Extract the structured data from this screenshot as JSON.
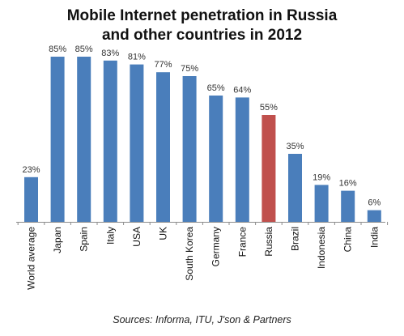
{
  "header": {
    "title_line1": "Mobile Internet penetration in Russia",
    "title_line2": "and other countries in 2012"
  },
  "footer": {
    "source": "Sources: Informa, ITU, J'son & Partners"
  },
  "chart_data": {
    "type": "bar",
    "title": "Mobile Internet penetration in Russia and other countries in 2012",
    "categories": [
      "World average",
      "Japan",
      "Spain",
      "Italy",
      "USA",
      "UK",
      "South Korea",
      "Germany",
      "France",
      "Russia",
      "Brazil",
      "Indonesia",
      "China",
      "India"
    ],
    "values": [
      23,
      85,
      85,
      83,
      81,
      77,
      75,
      65,
      64,
      55,
      35,
      19,
      16,
      6
    ],
    "data_labels": [
      "23%",
      "85%",
      "85%",
      "83%",
      "81%",
      "77%",
      "75%",
      "65%",
      "64%",
      "55%",
      "35%",
      "19%",
      "16%",
      "6%"
    ],
    "highlight_category": "Russia",
    "colors": {
      "default": "#4a7ebb",
      "highlight": "#c0504d"
    },
    "ylim": [
      0,
      100
    ],
    "y_axis_visible": false,
    "grid": false,
    "legend": "none",
    "xlabel": "",
    "ylabel": ""
  }
}
